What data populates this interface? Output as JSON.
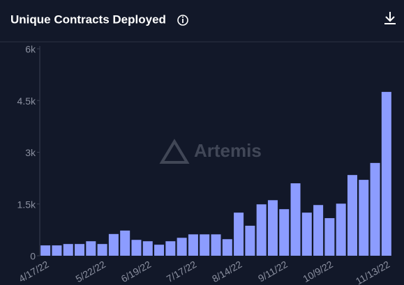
{
  "chart_data": {
    "type": "bar",
    "title": "Unique Contracts Deployed",
    "watermark": "Artemis",
    "categories": [
      "4/17/22",
      null,
      null,
      null,
      null,
      "5/22/22",
      null,
      null,
      null,
      "6/19/22",
      null,
      null,
      null,
      "7/17/22",
      null,
      null,
      null,
      "8/14/22",
      null,
      null,
      null,
      "9/11/22",
      null,
      null,
      null,
      "10/9/22",
      null,
      null,
      null,
      null,
      "11/13/22"
    ],
    "values": [
      300,
      300,
      340,
      340,
      420,
      340,
      630,
      730,
      460,
      420,
      320,
      420,
      520,
      620,
      620,
      620,
      480,
      1250,
      870,
      1490,
      1610,
      1350,
      2100,
      1250,
      1470,
      1090,
      1510,
      2340,
      2200,
      2690,
      4750
    ],
    "color": "#8c9cff",
    "ylim": [
      0,
      6000
    ],
    "yticks": [
      0,
      {
        "value": 1500,
        "label": "1.5k"
      },
      {
        "value": 3000,
        "label": "3k"
      },
      {
        "value": 4500,
        "label": "4.5k"
      },
      {
        "value": 6000,
        "label": "6k"
      }
    ],
    "grid": false
  }
}
